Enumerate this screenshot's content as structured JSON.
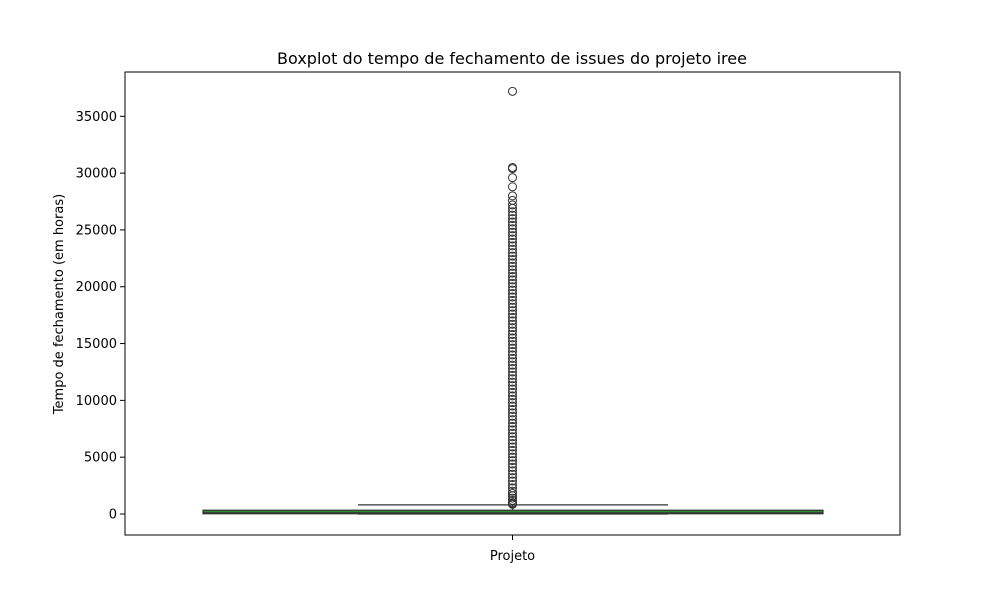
{
  "chart_data": {
    "type": "box",
    "title": "Boxplot do tempo de fechamento de issues do projeto iree",
    "xlabel": "",
    "ylabel": "Tempo de fechamento (em horas)",
    "categories": [
      "Projeto"
    ],
    "ylim": [
      -1850,
      38900
    ],
    "yticks": [
      0,
      5000,
      10000,
      15000,
      20000,
      25000,
      30000,
      35000
    ],
    "box": {
      "min": 0,
      "q1": 20,
      "median": 100,
      "q3": 330,
      "whisker_high": 800,
      "color": "#2e8b2e"
    },
    "outliers": [
      37200,
      30500,
      30400,
      29600,
      28800,
      28000,
      27600,
      27200,
      26900,
      26600,
      26300,
      26000,
      25700,
      25400,
      25100,
      24800,
      24500,
      24200,
      23900,
      23600,
      23300,
      23000,
      22700,
      22400,
      22100,
      21800,
      21500,
      21200,
      20900,
      20600,
      20300,
      20000,
      19700,
      19400,
      19100,
      18800,
      18500,
      18200,
      17900,
      17600,
      17300,
      17000,
      16700,
      16400,
      16100,
      15800,
      15500,
      15200,
      14900,
      14600,
      14300,
      14000,
      13700,
      13400,
      13100,
      12800,
      12500,
      12200,
      11900,
      11600,
      11300,
      11000,
      10700,
      10400,
      10100,
      9800,
      9500,
      9200,
      8900,
      8600,
      8300,
      8000,
      7700,
      7400,
      7100,
      6800,
      6500,
      6200,
      5900,
      5600,
      5300,
      5000,
      4700,
      4400,
      4100,
      3800,
      3500,
      3200,
      2900,
      2600,
      2300,
      2000,
      1800,
      1600,
      1400,
      1200,
      1000,
      900,
      850
    ]
  }
}
